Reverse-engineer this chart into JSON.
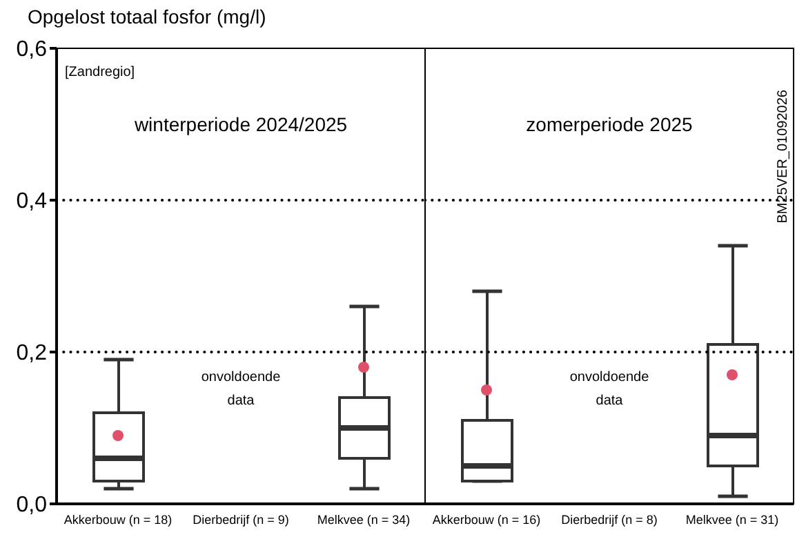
{
  "chart_data": [
    {
      "type": "box",
      "title": "winterperiode 2024/2025",
      "ylabel": "Opgelost totaal fosfor (mg/l)",
      "categories": [
        "Akkerbouw (n = 18)",
        "Dierbedrijf (n = 9)",
        "Melkvee (n = 34)"
      ],
      "ylim": [
        0,
        0.6
      ],
      "yticks": [
        {
          "value": 0,
          "label": "0,0"
        },
        {
          "value": 0.2,
          "label": "0,2"
        },
        {
          "value": 0.4,
          "label": "0,4"
        },
        {
          "value": 0.6,
          "label": "0,6"
        }
      ],
      "series": [
        {
          "type": "box",
          "color": "#333333",
          "boxes": [
            {
              "low": 0.02,
              "q1": 0.03,
              "median": 0.06,
              "q3": 0.12,
              "high": 0.19
            },
            null,
            {
              "low": 0.02,
              "q1": 0.06,
              "median": 0.1,
              "q3": 0.14,
              "high": 0.26
            }
          ]
        },
        {
          "type": "scatter",
          "color": "#e0506a",
          "x": [
            "Akkerbouw (n = 18)",
            "Melkvee (n = 34)"
          ],
          "values": [
            0.09,
            0.18
          ]
        }
      ],
      "ref_lines": [
        {
          "axis": "y",
          "value": 0.2,
          "line_style": "dotted",
          "color": "#000000"
        },
        {
          "axis": "y",
          "value": 0.4,
          "line_style": "dotted",
          "color": "#000000"
        }
      ],
      "annotations": [
        "[Zandregio]",
        "onvoldoende data"
      ]
    },
    {
      "type": "box",
      "title": "zomerperiode 2025",
      "categories": [
        "Akkerbouw (n = 16)",
        "Dierbedrijf (n = 8)",
        "Melkvee (n = 31)"
      ],
      "ylim": [
        0,
        0.6
      ],
      "tick_labels": "x",
      "series": [
        {
          "type": "box",
          "color": "#333333",
          "boxes": [
            {
              "low": 0.03,
              "q1": 0.03,
              "median": 0.05,
              "q3": 0.11,
              "high": 0.28
            },
            null,
            {
              "low": 0.01,
              "q1": 0.05,
              "median": 0.09,
              "q3": 0.21,
              "high": 0.34
            }
          ]
        },
        {
          "type": "scatter",
          "color": "#e0506a",
          "x": [
            "Akkerbouw (n = 16)",
            "Melkvee (n = 31)"
          ],
          "values": [
            0.15,
            0.17
          ]
        }
      ],
      "ref_lines": [
        {
          "axis": "y",
          "value": 0.2,
          "line_style": "dotted",
          "color": "#000000"
        },
        {
          "axis": "y",
          "value": 0.4,
          "line_style": "dotted",
          "color": "#000000"
        }
      ],
      "annotations": [
        "BM25VER_01092026",
        "onvoldoende data"
      ]
    }
  ]
}
